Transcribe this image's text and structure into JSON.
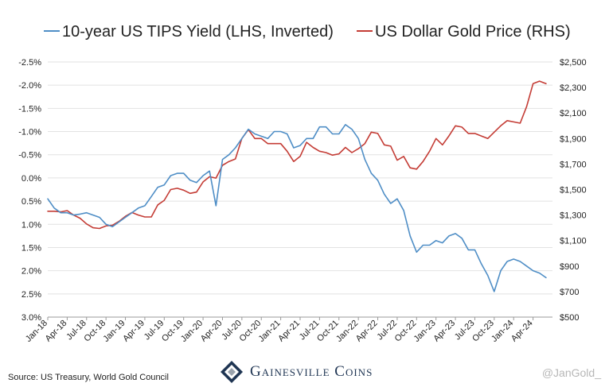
{
  "chart_data": {
    "type": "line",
    "series": [
      {
        "name": "10-year US TIPS Yield (LHS, Inverted)",
        "axis": "left",
        "unit": "%",
        "color": "#4f8ec6",
        "points": [
          [
            "2018-01",
            0.45
          ],
          [
            "2018-02",
            0.65
          ],
          [
            "2018-03",
            0.75
          ],
          [
            "2018-04",
            0.75
          ],
          [
            "2018-05",
            0.8
          ],
          [
            "2018-06",
            0.78
          ],
          [
            "2018-07",
            0.75
          ],
          [
            "2018-08",
            0.8
          ],
          [
            "2018-09",
            0.85
          ],
          [
            "2018-10",
            1.0
          ],
          [
            "2018-11",
            1.05
          ],
          [
            "2018-12",
            0.95
          ],
          [
            "2019-01",
            0.85
          ],
          [
            "2019-02",
            0.75
          ],
          [
            "2019-03",
            0.65
          ],
          [
            "2019-04",
            0.6
          ],
          [
            "2019-05",
            0.4
          ],
          [
            "2019-06",
            0.2
          ],
          [
            "2019-07",
            0.15
          ],
          [
            "2019-08",
            -0.05
          ],
          [
            "2019-09",
            -0.1
          ],
          [
            "2019-10",
            -0.1
          ],
          [
            "2019-11",
            0.05
          ],
          [
            "2019-12",
            0.1
          ],
          [
            "2020-01",
            -0.05
          ],
          [
            "2020-02",
            -0.15
          ],
          [
            "2020-03",
            0.6
          ],
          [
            "2020-04",
            -0.4
          ],
          [
            "2020-05",
            -0.5
          ],
          [
            "2020-06",
            -0.65
          ],
          [
            "2020-07",
            -0.85
          ],
          [
            "2020-08",
            -1.05
          ],
          [
            "2020-09",
            -0.95
          ],
          [
            "2020-10",
            -0.9
          ],
          [
            "2020-11",
            -0.85
          ],
          [
            "2020-12",
            -1.0
          ],
          [
            "2021-01",
            -1.0
          ],
          [
            "2021-02",
            -0.95
          ],
          [
            "2021-03",
            -0.65
          ],
          [
            "2021-04",
            -0.7
          ],
          [
            "2021-05",
            -0.85
          ],
          [
            "2021-06",
            -0.85
          ],
          [
            "2021-07",
            -1.1
          ],
          [
            "2021-08",
            -1.1
          ],
          [
            "2021-09",
            -0.95
          ],
          [
            "2021-10",
            -0.95
          ],
          [
            "2021-11",
            -1.15
          ],
          [
            "2021-12",
            -1.05
          ],
          [
            "2022-01",
            -0.85
          ],
          [
            "2022-02",
            -0.4
          ],
          [
            "2022-03",
            -0.1
          ],
          [
            "2022-04",
            0.05
          ],
          [
            "2022-05",
            0.35
          ],
          [
            "2022-06",
            0.55
          ],
          [
            "2022-07",
            0.45
          ],
          [
            "2022-08",
            0.7
          ],
          [
            "2022-09",
            1.25
          ],
          [
            "2022-10",
            1.6
          ],
          [
            "2022-11",
            1.45
          ],
          [
            "2022-12",
            1.45
          ],
          [
            "2023-01",
            1.35
          ],
          [
            "2023-02",
            1.4
          ],
          [
            "2023-03",
            1.25
          ],
          [
            "2023-04",
            1.2
          ],
          [
            "2023-05",
            1.3
          ],
          [
            "2023-06",
            1.55
          ],
          [
            "2023-07",
            1.55
          ],
          [
            "2023-08",
            1.85
          ],
          [
            "2023-09",
            2.1
          ],
          [
            "2023-10",
            2.45
          ],
          [
            "2023-11",
            2.0
          ],
          [
            "2023-12",
            1.8
          ],
          [
            "2024-01",
            1.75
          ],
          [
            "2024-02",
            1.8
          ],
          [
            "2024-03",
            1.9
          ],
          [
            "2024-04",
            2.0
          ],
          [
            "2024-05",
            2.05
          ],
          [
            "2024-06",
            2.15
          ]
        ]
      },
      {
        "name": "US Dollar Gold Price (RHS)",
        "axis": "right",
        "unit": "$",
        "color": "#c43c35",
        "points": [
          [
            "2018-01",
            1330
          ],
          [
            "2018-02",
            1330
          ],
          [
            "2018-03",
            1325
          ],
          [
            "2018-04",
            1335
          ],
          [
            "2018-05",
            1300
          ],
          [
            "2018-06",
            1275
          ],
          [
            "2018-07",
            1230
          ],
          [
            "2018-08",
            1200
          ],
          [
            "2018-09",
            1195
          ],
          [
            "2018-10",
            1215
          ],
          [
            "2018-11",
            1220
          ],
          [
            "2018-12",
            1250
          ],
          [
            "2019-01",
            1290
          ],
          [
            "2019-02",
            1320
          ],
          [
            "2019-03",
            1300
          ],
          [
            "2019-04",
            1285
          ],
          [
            "2019-05",
            1285
          ],
          [
            "2019-06",
            1380
          ],
          [
            "2019-07",
            1415
          ],
          [
            "2019-08",
            1500
          ],
          [
            "2019-09",
            1510
          ],
          [
            "2019-10",
            1495
          ],
          [
            "2019-11",
            1470
          ],
          [
            "2019-12",
            1480
          ],
          [
            "2020-01",
            1560
          ],
          [
            "2020-02",
            1600
          ],
          [
            "2020-03",
            1590
          ],
          [
            "2020-04",
            1690
          ],
          [
            "2020-05",
            1720
          ],
          [
            "2020-06",
            1740
          ],
          [
            "2020-07",
            1900
          ],
          [
            "2020-08",
            1970
          ],
          [
            "2020-09",
            1900
          ],
          [
            "2020-10",
            1900
          ],
          [
            "2020-11",
            1860
          ],
          [
            "2020-12",
            1860
          ],
          [
            "2021-01",
            1860
          ],
          [
            "2021-02",
            1800
          ],
          [
            "2021-03",
            1720
          ],
          [
            "2021-04",
            1760
          ],
          [
            "2021-05",
            1870
          ],
          [
            "2021-06",
            1830
          ],
          [
            "2021-07",
            1800
          ],
          [
            "2021-08",
            1790
          ],
          [
            "2021-09",
            1770
          ],
          [
            "2021-10",
            1780
          ],
          [
            "2021-11",
            1830
          ],
          [
            "2021-12",
            1790
          ],
          [
            "2022-01",
            1820
          ],
          [
            "2022-02",
            1860
          ],
          [
            "2022-03",
            1950
          ],
          [
            "2022-04",
            1940
          ],
          [
            "2022-05",
            1850
          ],
          [
            "2022-06",
            1840
          ],
          [
            "2022-07",
            1730
          ],
          [
            "2022-08",
            1760
          ],
          [
            "2022-09",
            1670
          ],
          [
            "2022-10",
            1660
          ],
          [
            "2022-11",
            1720
          ],
          [
            "2022-12",
            1800
          ],
          [
            "2023-01",
            1900
          ],
          [
            "2023-02",
            1850
          ],
          [
            "2023-03",
            1920
          ],
          [
            "2023-04",
            2000
          ],
          [
            "2023-05",
            1990
          ],
          [
            "2023-06",
            1940
          ],
          [
            "2023-07",
            1940
          ],
          [
            "2023-08",
            1920
          ],
          [
            "2023-09",
            1900
          ],
          [
            "2023-10",
            1950
          ],
          [
            "2023-11",
            2000
          ],
          [
            "2023-12",
            2040
          ],
          [
            "2024-01",
            2030
          ],
          [
            "2024-02",
            2020
          ],
          [
            "2024-03",
            2150
          ],
          [
            "2024-04",
            2330
          ],
          [
            "2024-05",
            2350
          ],
          [
            "2024-06",
            2330
          ]
        ]
      }
    ],
    "left_axis": {
      "inverted": true,
      "ylim": [
        -2.5,
        3.0
      ],
      "ticks": [
        -2.5,
        -2.0,
        -1.5,
        -1.0,
        -0.5,
        0.0,
        0.5,
        1.0,
        1.5,
        2.0,
        2.5,
        3.0
      ],
      "tick_labels": [
        "-2.5%",
        "-2.0%",
        "-1.5%",
        "-1.0%",
        "-0.5%",
        "0.0%",
        "0.5%",
        "1.0%",
        "1.5%",
        "2.0%",
        "2.5%",
        "3.0%"
      ]
    },
    "right_axis": {
      "ylim": [
        500,
        2500
      ],
      "ticks": [
        2500,
        2300,
        2100,
        1900,
        1700,
        1500,
        1300,
        1100,
        900,
        700,
        500
      ],
      "tick_labels": [
        "$2,500",
        "$2,300",
        "$2,100",
        "$1,900",
        "$1,700",
        "$1,500",
        "$1,300",
        "$1,100",
        "$900",
        "$700",
        "$500"
      ]
    },
    "x_axis": {
      "range": [
        "2018-01",
        "2024-07"
      ],
      "ticks": [
        "2018-01",
        "2018-04",
        "2018-07",
        "2018-10",
        "2019-01",
        "2019-04",
        "2019-07",
        "2019-10",
        "2020-01",
        "2020-04",
        "2020-07",
        "2020-10",
        "2021-01",
        "2021-04",
        "2021-07",
        "2021-10",
        "2022-01",
        "2022-04",
        "2022-07",
        "2022-10",
        "2023-01",
        "2023-04",
        "2023-07",
        "2023-10",
        "2024-01",
        "2024-04"
      ],
      "tick_labels": [
        "Jan-18",
        "Apr-18",
        "Jul-18",
        "Oct-18",
        "Jan-19",
        "Apr-19",
        "Jul-19",
        "Oct-19",
        "Jan-20",
        "Apr-20",
        "Jul-20",
        "Oct-20",
        "Jan-21",
        "Apr-21",
        "Jul-21",
        "Oct-21",
        "Jan-22",
        "Apr-22",
        "Jul-22",
        "Oct-22",
        "Jan-23",
        "Apr-23",
        "Jul-23",
        "Oct-23",
        "Jan-24",
        "Apr-24"
      ]
    },
    "grid": "horizontal",
    "legend": "top"
  },
  "source": "Source: US Treasury, World Gold Council",
  "brand": "Gainesville Coins",
  "handle": "@JanGold_"
}
